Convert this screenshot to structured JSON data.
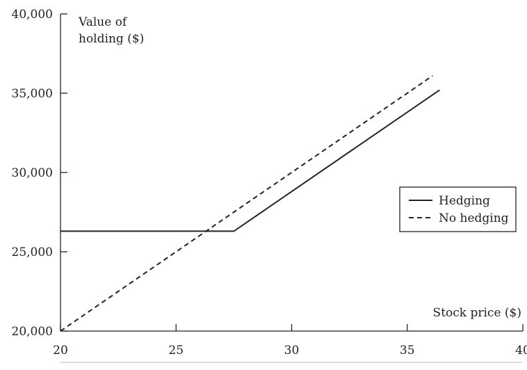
{
  "chart_data": {
    "type": "line",
    "xlabel": "Stock price ($)",
    "ylabel": [
      "Value of",
      "holding ($)"
    ],
    "xlim": [
      20,
      40
    ],
    "ylim": [
      20000,
      40000
    ],
    "x_ticks": [
      20,
      25,
      30,
      35,
      40
    ],
    "x_tick_labels": [
      "20",
      "25",
      "30",
      "35",
      "40"
    ],
    "y_ticks": [
      20000,
      25000,
      30000,
      35000,
      40000
    ],
    "y_tick_labels": [
      "20,000",
      "25,000",
      "30,000",
      "35,000",
      "40,000"
    ],
    "grid": false,
    "legend_position": "right",
    "series": [
      {
        "name": "Hedging",
        "style": "solid",
        "color": "#222222",
        "x": [
          20,
          27.5,
          36.4
        ],
        "y": [
          26300,
          26300,
          35200
        ]
      },
      {
        "name": "No hedging",
        "style": "dashed",
        "color": "#222222",
        "x": [
          20,
          36.1
        ],
        "y": [
          20000,
          36100
        ]
      }
    ]
  }
}
